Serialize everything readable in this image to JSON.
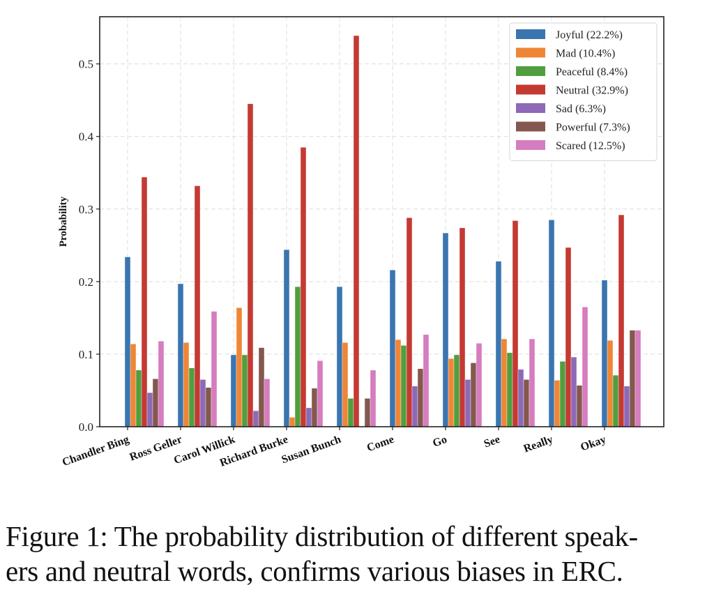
{
  "chart_data": {
    "type": "bar",
    "title": "",
    "xlabel": "",
    "ylabel": "Probability",
    "ylim": [
      0,
      0.565
    ],
    "yticks": [
      "0.0",
      "0.1",
      "0.2",
      "0.3",
      "0.4",
      "0.5"
    ],
    "ytick_values": [
      0.0,
      0.1,
      0.2,
      0.3,
      0.4,
      0.5
    ],
    "grid": true,
    "legend_position": "top-right",
    "categories": [
      "Chandler Bing",
      "Ross Geller",
      "Carol Willick",
      "Richard Burke",
      "Susan Bunch",
      "Come",
      "Go",
      "See",
      "Really",
      "Okay"
    ],
    "series": [
      {
        "name": "Joyful (22.2%)",
        "color": "#3a75b0",
        "values": [
          0.234,
          0.197,
          0.099,
          0.244,
          0.193,
          0.216,
          0.267,
          0.228,
          0.285,
          0.202
        ]
      },
      {
        "name": "Mad (10.4%)",
        "color": "#ef8636",
        "values": [
          0.114,
          0.116,
          0.164,
          0.013,
          0.116,
          0.12,
          0.094,
          0.121,
          0.064,
          0.119
        ]
      },
      {
        "name": "Peaceful (8.4%)",
        "color": "#519e3e",
        "values": [
          0.078,
          0.081,
          0.099,
          0.193,
          0.039,
          0.112,
          0.099,
          0.102,
          0.09,
          0.071
        ]
      },
      {
        "name": "Neutral (32.9%)",
        "color": "#c43a32",
        "values": [
          0.344,
          0.332,
          0.445,
          0.385,
          0.539,
          0.288,
          0.274,
          0.284,
          0.247,
          0.292
        ]
      },
      {
        "name": "Sad (6.3%)",
        "color": "#8d69b8",
        "values": [
          0.047,
          0.065,
          0.022,
          0.026,
          0.0,
          0.056,
          0.065,
          0.079,
          0.096,
          0.056
        ]
      },
      {
        "name": "Powerful (7.3%)",
        "color": "#84584e",
        "values": [
          0.066,
          0.054,
          0.109,
          0.053,
          0.039,
          0.08,
          0.088,
          0.065,
          0.057,
          0.133
        ]
      },
      {
        "name": "Scared (12.5%)",
        "color": "#d57dbe",
        "values": [
          0.118,
          0.159,
          0.066,
          0.091,
          0.078,
          0.127,
          0.115,
          0.121,
          0.165,
          0.133
        ]
      }
    ]
  },
  "caption": {
    "line1": "Figure 1: The probability distribution of different speak-",
    "line2": "ers and neutral words, confirms various biases in ERC."
  }
}
